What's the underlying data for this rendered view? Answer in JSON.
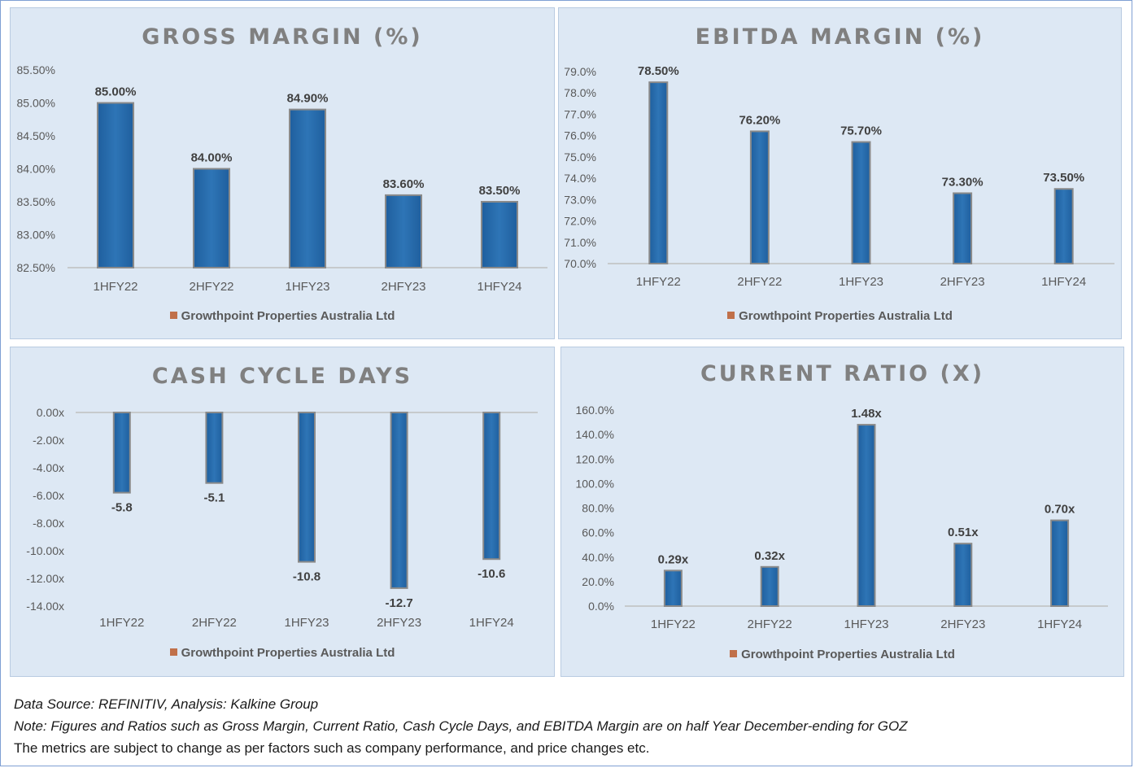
{
  "chart_data": [
    {
      "id": "gross",
      "type": "bar",
      "title": "GROSS MARGIN (%)",
      "categories": [
        "1HFY22",
        "2HFY22",
        "1HFY23",
        "2HFY23",
        "1HFY24"
      ],
      "series": [
        {
          "name": "Growthpoint Properties Australia Ltd",
          "values": [
            85.0,
            84.0,
            84.9,
            83.6,
            83.5
          ]
        }
      ],
      "data_labels": [
        "85.00%",
        "84.00%",
        "84.90%",
        "83.60%",
        "83.50%"
      ],
      "y_ticks": [
        82.5,
        83.0,
        83.5,
        84.0,
        84.5,
        85.0,
        85.5
      ],
      "y_tick_labels": [
        "82.50%",
        "83.00%",
        "83.50%",
        "84.00%",
        "84.50%",
        "85.00%",
        "85.50%"
      ],
      "ylim": [
        82.5,
        85.5
      ],
      "grid": false,
      "legend_position": "bottom"
    },
    {
      "id": "ebitda",
      "type": "bar",
      "title": "EBITDA MARGIN (%)",
      "categories": [
        "1HFY22",
        "2HFY22",
        "1HFY23",
        "2HFY23",
        "1HFY24"
      ],
      "series": [
        {
          "name": "Growthpoint Properties Australia Ltd",
          "values": [
            78.5,
            76.2,
            75.7,
            73.3,
            73.5
          ]
        }
      ],
      "data_labels": [
        "78.50%",
        "76.20%",
        "75.70%",
        "73.30%",
        "73.50%"
      ],
      "y_ticks": [
        70,
        71,
        72,
        73,
        74,
        75,
        76,
        77,
        78,
        79
      ],
      "y_tick_labels": [
        "70.0%",
        "71.0%",
        "72.0%",
        "73.0%",
        "74.0%",
        "75.0%",
        "76.0%",
        "77.0%",
        "78.0%",
        "79.0%"
      ],
      "ylim": [
        70,
        79
      ],
      "grid": false,
      "legend_position": "bottom"
    },
    {
      "id": "cash",
      "type": "bar",
      "title": "CASH CYCLE DAYS",
      "categories": [
        "1HFY22",
        "2HFY22",
        "1HFY23",
        "2HFY23",
        "1HFY24"
      ],
      "series": [
        {
          "name": "Growthpoint Properties Australia Ltd",
          "values": [
            -5.8,
            -5.1,
            -10.8,
            -12.7,
            -10.6
          ]
        }
      ],
      "data_labels": [
        "-5.8",
        "-5.1",
        "-10.8",
        "-12.7",
        "-10.6"
      ],
      "y_ticks": [
        0,
        -2,
        -4,
        -6,
        -8,
        -10,
        -12,
        -14
      ],
      "y_tick_labels": [
        "0.00x",
        "-2.00x",
        "-4.00x",
        "-6.00x",
        "-8.00x",
        "-10.00x",
        "-12.00x",
        "-14.00x"
      ],
      "ylim": [
        -14,
        0
      ],
      "grid": false,
      "legend_position": "bottom"
    },
    {
      "id": "current",
      "type": "bar",
      "title": "CURRENT RATIO (X)",
      "categories": [
        "1HFY22",
        "2HFY22",
        "1HFY23",
        "2HFY23",
        "1HFY24"
      ],
      "series": [
        {
          "name": "Growthpoint Properties Australia Ltd",
          "values": [
            0.29,
            0.32,
            1.48,
            0.51,
            0.7
          ]
        }
      ],
      "data_labels": [
        "0.29x",
        "0.32x",
        "1.48x",
        "0.51x",
        "0.70x"
      ],
      "y_ticks": [
        0,
        0.2,
        0.4,
        0.6,
        0.8,
        1.0,
        1.2,
        1.4,
        1.6
      ],
      "y_tick_labels": [
        "0.0%",
        "20.0%",
        "40.0%",
        "60.0%",
        "80.0%",
        "100.0%",
        "120.0%",
        "140.0%",
        "160.0%"
      ],
      "ylim": [
        0,
        1.6
      ],
      "grid": false,
      "legend_position": "bottom"
    }
  ],
  "colors": {
    "bar": "#2e75b6",
    "bar_border": "#8a8a8a",
    "legend_swatch": "#c0704a",
    "panel_bg": "#dde8f4"
  },
  "footer": {
    "source": "Data Source: REFINITIV, Analysis: Kalkine Group",
    "note": "Note: Figures and Ratios such as Gross Margin, Current Ratio, Cash Cycle Days, and EBITDA Margin are on half Year December-ending for GOZ",
    "disclaimer": "The metrics are subject to change as per factors such as company performance, and price changes etc."
  }
}
